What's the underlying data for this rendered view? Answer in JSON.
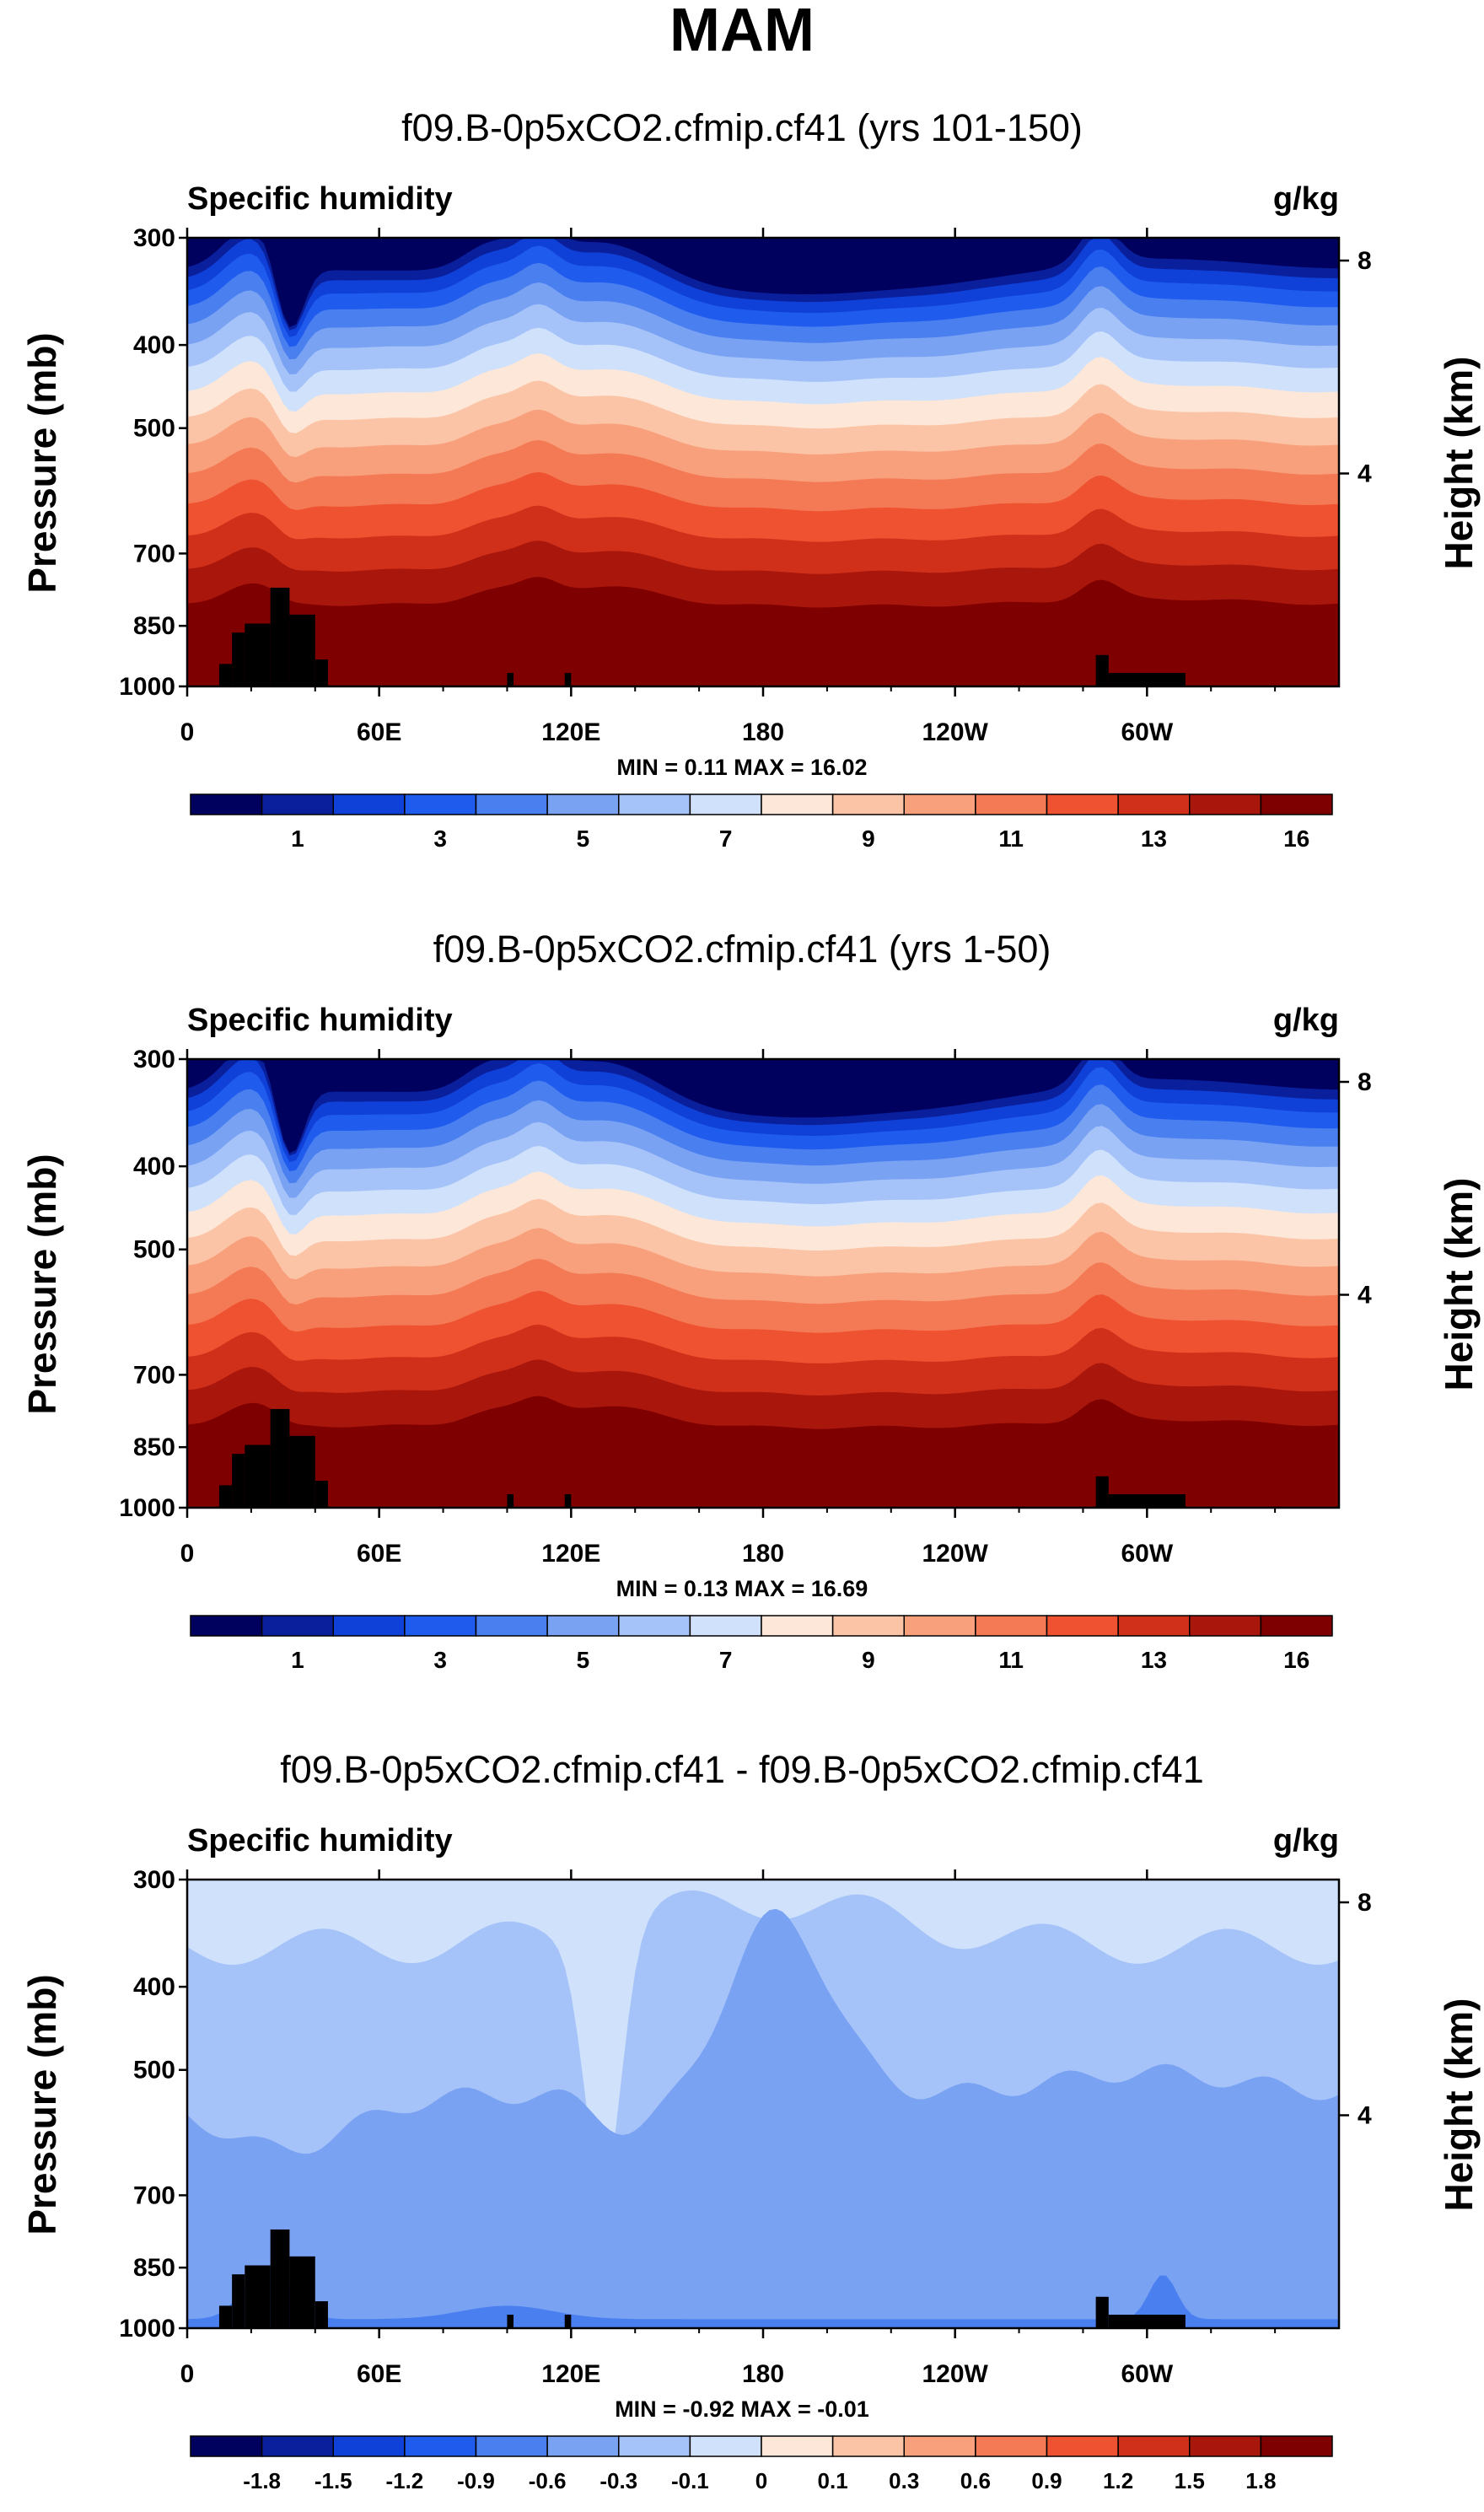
{
  "title": "MAM",
  "colors": {
    "seq": [
      "#00005f",
      "#0a1f9c",
      "#0f40d7",
      "#1f5bed",
      "#4a7ff0",
      "#7aa2f3",
      "#a5c3f8",
      "#cfe1fb",
      "#fde7d8",
      "#fbc4a6",
      "#f8a07c",
      "#f47a56",
      "#ef5230",
      "#d0301a",
      "#a8160c",
      "#7e0000"
    ],
    "diff": [
      "#00005f",
      "#0a1f9c",
      "#0f40d7",
      "#1f5bed",
      "#4a7ff0",
      "#7aa2f3",
      "#a5c3f8",
      "#cfe1fb",
      "#fde7d8",
      "#fbc4a6",
      "#f8a07c",
      "#f47a56",
      "#ef5230",
      "#d0301a",
      "#a8160c",
      "#7e0000"
    ],
    "terrain": "#000000"
  },
  "panels": [
    {
      "title": "f09.B-0p5xCO2.cfmip.cf41 (yrs 101-150)",
      "variable": "Specific humidity",
      "units": "g/kg",
      "min_max": "MIN =   0.11  MAX =  16.02",
      "y_label": "Pressure (mb)",
      "y2_label": "Height (km)"
    },
    {
      "title": "f09.B-0p5xCO2.cfmip.cf41 (yrs 1-50)",
      "variable": "Specific humidity",
      "units": "g/kg",
      "min_max": "MIN =   0.13  MAX =  16.69",
      "y_label": "Pressure (mb)",
      "y2_label": "Height (km)"
    },
    {
      "title": "f09.B-0p5xCO2.cfmip.cf41 - f09.B-0p5xCO2.cfmip.cf41",
      "variable": "Specific humidity",
      "units": "g/kg",
      "min_max": "MIN =  -0.92  MAX =  -0.01",
      "y_label": "Pressure (mb)",
      "y2_label": "Height (km)"
    }
  ],
  "chart_data": [
    {
      "type": "heatmap",
      "title": "f09.B-0p5xCO2.cfmip.cf41 (yrs 101-150)",
      "xlabel": "",
      "ylabel": "Pressure (mb)",
      "y2label": "Height (km)",
      "x_ticks": [
        "0",
        "60E",
        "120E",
        "180",
        "120W",
        "60W"
      ],
      "x_tick_lon": [
        0,
        60,
        120,
        180,
        240,
        300
      ],
      "xlim": [
        0,
        360
      ],
      "y_ticks": [
        "300",
        "400",
        "500",
        "700",
        "850",
        "1000"
      ],
      "y_tick_p": [
        300,
        400,
        500,
        700,
        850,
        1000
      ],
      "ylim": [
        300,
        1000
      ],
      "y2_ticks": [
        "4",
        "8"
      ],
      "colorbar_labels": [
        "1",
        "3",
        "5",
        "7",
        "9",
        "11",
        "13",
        "16"
      ],
      "levels": [
        0.5,
        1,
        2,
        3,
        4,
        5,
        6,
        7,
        8,
        9,
        10,
        11,
        12,
        13,
        14,
        16
      ],
      "min": 0.11,
      "max": 16.02
    },
    {
      "type": "heatmap",
      "title": "f09.B-0p5xCO2.cfmip.cf41 (yrs 1-50)",
      "xlabel": "",
      "ylabel": "Pressure (mb)",
      "y2label": "Height (km)",
      "x_ticks": [
        "0",
        "60E",
        "120E",
        "180",
        "120W",
        "60W"
      ],
      "x_tick_lon": [
        0,
        60,
        120,
        180,
        240,
        300
      ],
      "xlim": [
        0,
        360
      ],
      "y_ticks": [
        "300",
        "400",
        "500",
        "700",
        "850",
        "1000"
      ],
      "y_tick_p": [
        300,
        400,
        500,
        700,
        850,
        1000
      ],
      "ylim": [
        300,
        1000
      ],
      "y2_ticks": [
        "4",
        "8"
      ],
      "colorbar_labels": [
        "1",
        "3",
        "5",
        "7",
        "9",
        "11",
        "13",
        "16"
      ],
      "levels": [
        0.5,
        1,
        2,
        3,
        4,
        5,
        6,
        7,
        8,
        9,
        10,
        11,
        12,
        13,
        14,
        16
      ],
      "min": 0.13,
      "max": 16.69
    },
    {
      "type": "heatmap",
      "title": "f09.B-0p5xCO2.cfmip.cf41 - f09.B-0p5xCO2.cfmip.cf41",
      "xlabel": "",
      "ylabel": "Pressure (mb)",
      "y2label": "Height (km)",
      "x_ticks": [
        "0",
        "60E",
        "120E",
        "180",
        "120W",
        "60W"
      ],
      "x_tick_lon": [
        0,
        60,
        120,
        180,
        240,
        300
      ],
      "xlim": [
        0,
        360
      ],
      "y_ticks": [
        "300",
        "400",
        "500",
        "700",
        "850",
        "1000"
      ],
      "y_tick_p": [
        300,
        400,
        500,
        700,
        850,
        1000
      ],
      "ylim": [
        300,
        1000
      ],
      "y2_ticks": [
        "4",
        "8"
      ],
      "colorbar_labels": [
        "-1.8",
        "-1.5",
        "-1.2",
        "-0.9",
        "-0.6",
        "-0.3",
        "-0.1",
        "0",
        "0.1",
        "0.3",
        "0.6",
        "0.9",
        "1.2",
        "1.5",
        "1.8"
      ],
      "levels": [
        -2.1,
        -1.8,
        -1.5,
        -1.2,
        -0.9,
        -0.6,
        -0.3,
        -0.1,
        0,
        0.1,
        0.3,
        0.6,
        0.9,
        1.2,
        1.5,
        1.8
      ],
      "min": -0.92,
      "max": -0.01
    }
  ]
}
